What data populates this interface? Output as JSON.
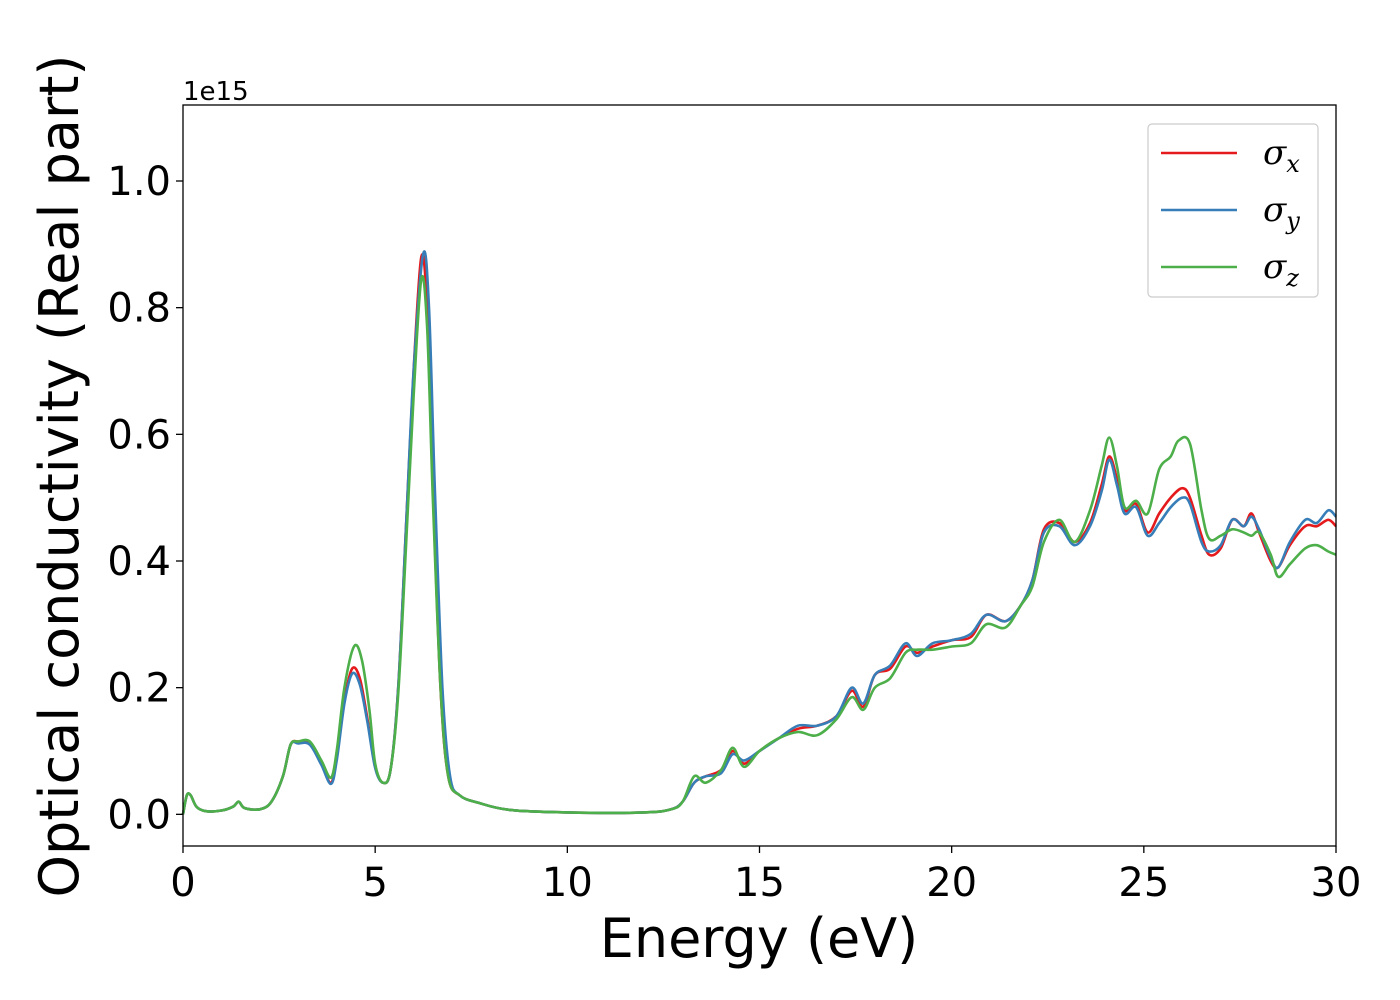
{
  "chart_data": {
    "type": "line",
    "title": "",
    "xlabel": "Energy (eV)",
    "ylabel": "Optical conductivity (Real part)",
    "y_offset_label": "1e15",
    "xlim": [
      0,
      30
    ],
    "ylim": [
      -0.05,
      1.12
    ],
    "xticks": [
      0,
      5,
      10,
      15,
      20,
      25,
      30
    ],
    "xtick_labels": [
      "0",
      "5",
      "10",
      "15",
      "20",
      "25",
      "30"
    ],
    "yticks": [
      0.0,
      0.2,
      0.4,
      0.6,
      0.8,
      1.0
    ],
    "ytick_labels": [
      "0.0",
      "0.2",
      "0.4",
      "0.6",
      "0.8",
      "1.0"
    ],
    "grid": false,
    "legend_position": "top-right",
    "series": [
      {
        "name": "σx",
        "symbol": "σ",
        "subscript": "x",
        "color": "#e41a1c",
        "points": [
          [
            0,
            0.0
          ],
          [
            0.1,
            0.03
          ],
          [
            0.2,
            0.03
          ],
          [
            0.35,
            0.012
          ],
          [
            0.6,
            0.005
          ],
          [
            1.0,
            0.006
          ],
          [
            1.3,
            0.012
          ],
          [
            1.45,
            0.02
          ],
          [
            1.6,
            0.01
          ],
          [
            2.0,
            0.008
          ],
          [
            2.3,
            0.02
          ],
          [
            2.6,
            0.06
          ],
          [
            2.8,
            0.11
          ],
          [
            3.0,
            0.115
          ],
          [
            3.3,
            0.112
          ],
          [
            3.6,
            0.08
          ],
          [
            3.85,
            0.05
          ],
          [
            4.0,
            0.09
          ],
          [
            4.2,
            0.18
          ],
          [
            4.4,
            0.23
          ],
          [
            4.6,
            0.215
          ],
          [
            4.8,
            0.15
          ],
          [
            5.0,
            0.075
          ],
          [
            5.2,
            0.05
          ],
          [
            5.4,
            0.07
          ],
          [
            5.6,
            0.2
          ],
          [
            5.8,
            0.45
          ],
          [
            6.0,
            0.7
          ],
          [
            6.2,
            0.88
          ],
          [
            6.35,
            0.8
          ],
          [
            6.5,
            0.52
          ],
          [
            6.7,
            0.2
          ],
          [
            6.9,
            0.06
          ],
          [
            7.2,
            0.03
          ],
          [
            7.7,
            0.018
          ],
          [
            8.5,
            0.007
          ],
          [
            10,
            0.003
          ],
          [
            12,
            0.003
          ],
          [
            12.7,
            0.008
          ],
          [
            13.0,
            0.02
          ],
          [
            13.3,
            0.05
          ],
          [
            13.6,
            0.06
          ],
          [
            14.0,
            0.07
          ],
          [
            14.3,
            0.1
          ],
          [
            14.6,
            0.08
          ],
          [
            15.0,
            0.1
          ],
          [
            15.5,
            0.12
          ],
          [
            16.0,
            0.135
          ],
          [
            16.5,
            0.14
          ],
          [
            17.0,
            0.155
          ],
          [
            17.4,
            0.195
          ],
          [
            17.7,
            0.17
          ],
          [
            18.0,
            0.22
          ],
          [
            18.4,
            0.23
          ],
          [
            18.8,
            0.265
          ],
          [
            19.1,
            0.255
          ],
          [
            19.5,
            0.265
          ],
          [
            20.0,
            0.275
          ],
          [
            20.5,
            0.28
          ],
          [
            20.9,
            0.315
          ],
          [
            21.4,
            0.305
          ],
          [
            21.8,
            0.33
          ],
          [
            22.1,
            0.37
          ],
          [
            22.4,
            0.45
          ],
          [
            22.8,
            0.46
          ],
          [
            23.2,
            0.43
          ],
          [
            23.6,
            0.46
          ],
          [
            23.9,
            0.52
          ],
          [
            24.1,
            0.565
          ],
          [
            24.3,
            0.53
          ],
          [
            24.5,
            0.48
          ],
          [
            24.8,
            0.49
          ],
          [
            25.1,
            0.445
          ],
          [
            25.4,
            0.475
          ],
          [
            25.7,
            0.5
          ],
          [
            26.0,
            0.515
          ],
          [
            26.2,
            0.5
          ],
          [
            26.5,
            0.44
          ],
          [
            26.7,
            0.41
          ],
          [
            27.0,
            0.42
          ],
          [
            27.3,
            0.465
          ],
          [
            27.6,
            0.455
          ],
          [
            27.8,
            0.475
          ],
          [
            28.0,
            0.445
          ],
          [
            28.3,
            0.4
          ],
          [
            28.5,
            0.39
          ],
          [
            28.8,
            0.425
          ],
          [
            29.2,
            0.455
          ],
          [
            29.5,
            0.455
          ],
          [
            29.8,
            0.465
          ],
          [
            30.0,
            0.455
          ]
        ]
      },
      {
        "name": "σy",
        "symbol": "σ",
        "subscript": "y",
        "color": "#377eb8",
        "points": [
          [
            0,
            0.0
          ],
          [
            0.1,
            0.03
          ],
          [
            0.2,
            0.03
          ],
          [
            0.35,
            0.012
          ],
          [
            0.6,
            0.005
          ],
          [
            1.0,
            0.006
          ],
          [
            1.3,
            0.012
          ],
          [
            1.45,
            0.02
          ],
          [
            1.6,
            0.01
          ],
          [
            2.0,
            0.008
          ],
          [
            2.3,
            0.02
          ],
          [
            2.6,
            0.06
          ],
          [
            2.8,
            0.11
          ],
          [
            3.0,
            0.112
          ],
          [
            3.3,
            0.11
          ],
          [
            3.6,
            0.078
          ],
          [
            3.85,
            0.048
          ],
          [
            4.0,
            0.085
          ],
          [
            4.2,
            0.175
          ],
          [
            4.4,
            0.222
          ],
          [
            4.6,
            0.205
          ],
          [
            4.8,
            0.145
          ],
          [
            5.0,
            0.073
          ],
          [
            5.2,
            0.05
          ],
          [
            5.4,
            0.07
          ],
          [
            5.6,
            0.2
          ],
          [
            5.8,
            0.45
          ],
          [
            6.0,
            0.7
          ],
          [
            6.25,
            0.885
          ],
          [
            6.4,
            0.8
          ],
          [
            6.55,
            0.52
          ],
          [
            6.75,
            0.2
          ],
          [
            6.95,
            0.06
          ],
          [
            7.2,
            0.03
          ],
          [
            7.7,
            0.018
          ],
          [
            8.5,
            0.007
          ],
          [
            10,
            0.003
          ],
          [
            12,
            0.003
          ],
          [
            12.7,
            0.008
          ],
          [
            13.0,
            0.02
          ],
          [
            13.3,
            0.05
          ],
          [
            13.6,
            0.06
          ],
          [
            14.0,
            0.065
          ],
          [
            14.3,
            0.095
          ],
          [
            14.6,
            0.085
          ],
          [
            15.0,
            0.1
          ],
          [
            15.5,
            0.12
          ],
          [
            16.0,
            0.14
          ],
          [
            16.5,
            0.14
          ],
          [
            17.0,
            0.155
          ],
          [
            17.4,
            0.2
          ],
          [
            17.7,
            0.175
          ],
          [
            18.0,
            0.22
          ],
          [
            18.4,
            0.235
          ],
          [
            18.8,
            0.27
          ],
          [
            19.1,
            0.25
          ],
          [
            19.5,
            0.27
          ],
          [
            20.0,
            0.275
          ],
          [
            20.5,
            0.285
          ],
          [
            20.9,
            0.315
          ],
          [
            21.4,
            0.305
          ],
          [
            21.8,
            0.33
          ],
          [
            22.1,
            0.37
          ],
          [
            22.4,
            0.445
          ],
          [
            22.8,
            0.455
          ],
          [
            23.2,
            0.425
          ],
          [
            23.6,
            0.455
          ],
          [
            23.9,
            0.51
          ],
          [
            24.1,
            0.56
          ],
          [
            24.3,
            0.52
          ],
          [
            24.5,
            0.475
          ],
          [
            24.8,
            0.485
          ],
          [
            25.1,
            0.44
          ],
          [
            25.4,
            0.46
          ],
          [
            25.7,
            0.485
          ],
          [
            26.0,
            0.5
          ],
          [
            26.2,
            0.49
          ],
          [
            26.5,
            0.43
          ],
          [
            26.7,
            0.415
          ],
          [
            27.0,
            0.425
          ],
          [
            27.3,
            0.465
          ],
          [
            27.6,
            0.455
          ],
          [
            27.8,
            0.47
          ],
          [
            28.0,
            0.45
          ],
          [
            28.3,
            0.405
          ],
          [
            28.5,
            0.39
          ],
          [
            28.8,
            0.43
          ],
          [
            29.2,
            0.465
          ],
          [
            29.5,
            0.46
          ],
          [
            29.8,
            0.48
          ],
          [
            30.0,
            0.47
          ]
        ]
      },
      {
        "name": "σz",
        "symbol": "σ",
        "subscript": "z",
        "color": "#4daf4a",
        "points": [
          [
            0,
            0.0
          ],
          [
            0.1,
            0.03
          ],
          [
            0.2,
            0.03
          ],
          [
            0.35,
            0.012
          ],
          [
            0.6,
            0.005
          ],
          [
            1.0,
            0.006
          ],
          [
            1.3,
            0.012
          ],
          [
            1.45,
            0.02
          ],
          [
            1.6,
            0.01
          ],
          [
            2.0,
            0.008
          ],
          [
            2.3,
            0.02
          ],
          [
            2.6,
            0.06
          ],
          [
            2.8,
            0.11
          ],
          [
            3.0,
            0.115
          ],
          [
            3.3,
            0.115
          ],
          [
            3.6,
            0.085
          ],
          [
            3.85,
            0.058
          ],
          [
            4.0,
            0.1
          ],
          [
            4.2,
            0.2
          ],
          [
            4.45,
            0.265
          ],
          [
            4.65,
            0.245
          ],
          [
            4.85,
            0.165
          ],
          [
            5.0,
            0.08
          ],
          [
            5.2,
            0.05
          ],
          [
            5.4,
            0.07
          ],
          [
            5.6,
            0.19
          ],
          [
            5.8,
            0.42
          ],
          [
            6.0,
            0.66
          ],
          [
            6.2,
            0.845
          ],
          [
            6.35,
            0.77
          ],
          [
            6.5,
            0.5
          ],
          [
            6.7,
            0.2
          ],
          [
            6.9,
            0.06
          ],
          [
            7.2,
            0.03
          ],
          [
            7.7,
            0.018
          ],
          [
            8.5,
            0.007
          ],
          [
            10,
            0.003
          ],
          [
            12,
            0.003
          ],
          [
            12.7,
            0.008
          ],
          [
            13.0,
            0.02
          ],
          [
            13.3,
            0.06
          ],
          [
            13.6,
            0.05
          ],
          [
            14.0,
            0.07
          ],
          [
            14.3,
            0.105
          ],
          [
            14.6,
            0.075
          ],
          [
            15.0,
            0.1
          ],
          [
            15.5,
            0.12
          ],
          [
            16.0,
            0.13
          ],
          [
            16.5,
            0.125
          ],
          [
            17.0,
            0.15
          ],
          [
            17.4,
            0.185
          ],
          [
            17.7,
            0.165
          ],
          [
            18.0,
            0.2
          ],
          [
            18.4,
            0.215
          ],
          [
            18.8,
            0.255
          ],
          [
            19.1,
            0.26
          ],
          [
            19.5,
            0.26
          ],
          [
            20.0,
            0.265
          ],
          [
            20.5,
            0.27
          ],
          [
            20.9,
            0.3
          ],
          [
            21.4,
            0.295
          ],
          [
            21.8,
            0.33
          ],
          [
            22.1,
            0.36
          ],
          [
            22.4,
            0.43
          ],
          [
            22.8,
            0.465
          ],
          [
            23.2,
            0.43
          ],
          [
            23.6,
            0.48
          ],
          [
            23.9,
            0.55
          ],
          [
            24.1,
            0.595
          ],
          [
            24.3,
            0.55
          ],
          [
            24.5,
            0.485
          ],
          [
            24.8,
            0.495
          ],
          [
            25.1,
            0.475
          ],
          [
            25.4,
            0.545
          ],
          [
            25.7,
            0.565
          ],
          [
            25.9,
            0.59
          ],
          [
            26.2,
            0.585
          ],
          [
            26.5,
            0.48
          ],
          [
            26.7,
            0.435
          ],
          [
            27.0,
            0.44
          ],
          [
            27.3,
            0.45
          ],
          [
            27.6,
            0.445
          ],
          [
            27.8,
            0.44
          ],
          [
            28.0,
            0.445
          ],
          [
            28.3,
            0.41
          ],
          [
            28.5,
            0.375
          ],
          [
            28.8,
            0.395
          ],
          [
            29.2,
            0.42
          ],
          [
            29.5,
            0.425
          ],
          [
            29.8,
            0.415
          ],
          [
            30.0,
            0.41
          ]
        ]
      }
    ]
  }
}
